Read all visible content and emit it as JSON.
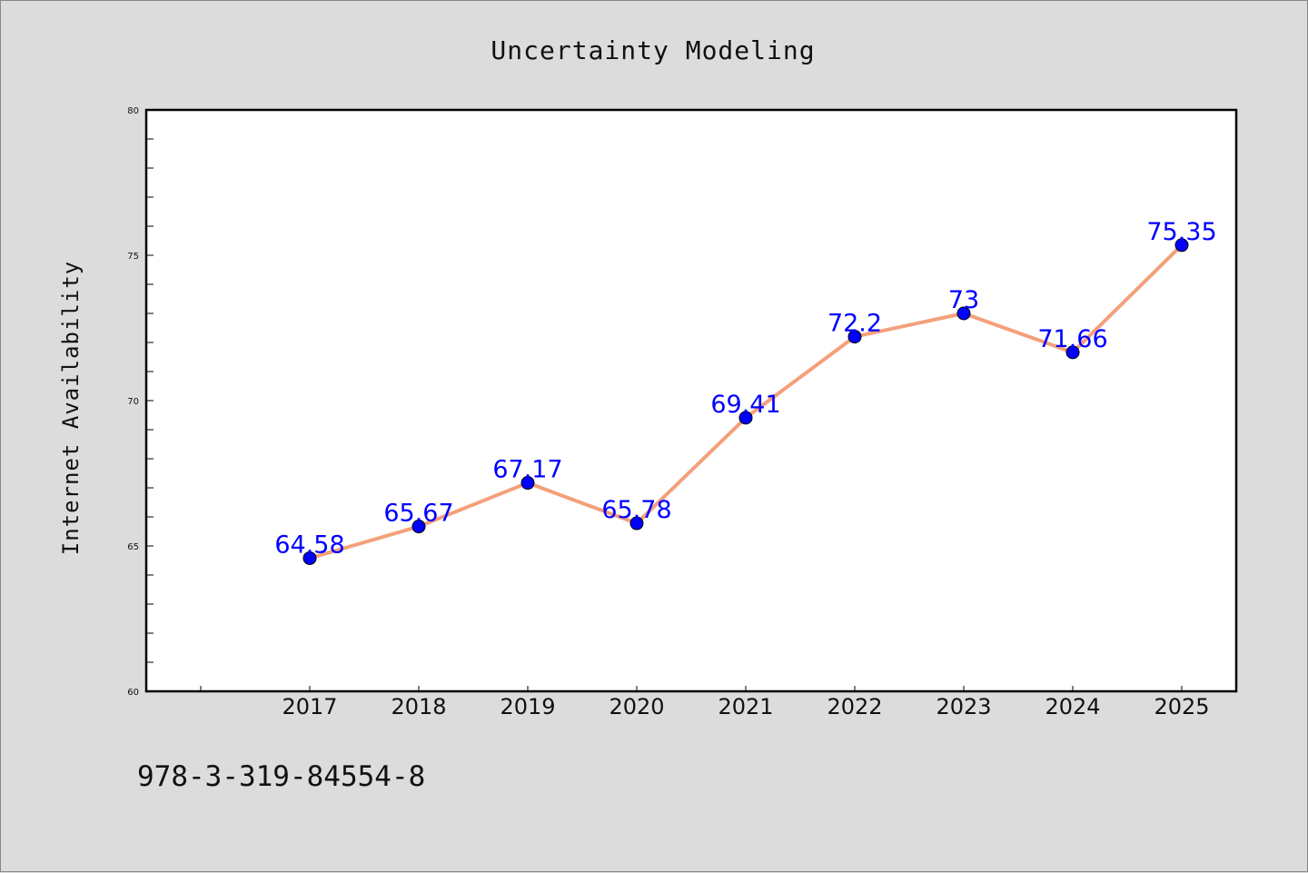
{
  "footer": {
    "text": "978-3-319-84554-8"
  },
  "chart_data": {
    "type": "line",
    "title": "Uncertainty Modeling",
    "xlabel": "",
    "ylabel": "Internet Availability",
    "categories": [
      "2017",
      "2018",
      "2019",
      "2020",
      "2021",
      "2022",
      "2023",
      "2024",
      "2025"
    ],
    "series": [
      {
        "values": [
          64.58,
          65.67,
          67.17,
          65.78,
          69.41,
          72.2,
          73,
          71.66,
          75.35
        ],
        "labels": [
          "64.58",
          "65.67",
          "67.17",
          "65.78",
          "69.41",
          "72.2",
          "73",
          "71.66",
          "75.35"
        ],
        "line_color": "#f4a07a",
        "marker_color": "#0000ff"
      }
    ],
    "ylim": [
      60,
      80
    ],
    "y_ticks": [
      "60",
      "65",
      "70",
      "75",
      "80"
    ],
    "grid": false,
    "legend": "none",
    "background_color": "#dcdcdc",
    "plot_background_color": "#ffffff",
    "label_color": "#0000ff"
  }
}
